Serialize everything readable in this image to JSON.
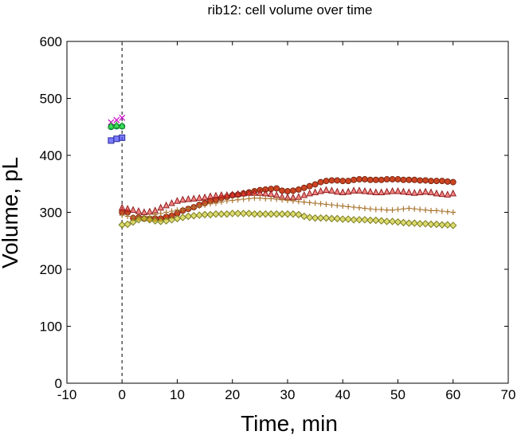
{
  "chart_data": {
    "type": "scatter",
    "title": "rib12: cell volume over time",
    "xlabel": "Time, min",
    "ylabel": "Volume, pL",
    "xlim": [
      -10,
      70
    ],
    "ylim": [
      0,
      600
    ],
    "xticks": [
      -10,
      0,
      10,
      20,
      30,
      40,
      50,
      60,
      70
    ],
    "yticks": [
      0,
      100,
      200,
      300,
      400,
      500,
      600
    ],
    "grid": false,
    "reference_line": {
      "x": 0,
      "style": "dashed",
      "color": "#555555"
    },
    "series": [
      {
        "marker": "x",
        "color": "#cc00cc",
        "x": [
          -2,
          -1,
          0
        ],
        "y": [
          458,
          462,
          466
        ]
      },
      {
        "marker": "circle",
        "color": "#00cc66",
        "x": [
          -2,
          -1,
          0
        ],
        "y": [
          450,
          451,
          451
        ]
      },
      {
        "marker": "triangle",
        "color": "#55ff55",
        "x": [
          -2,
          -1,
          0
        ],
        "y": [
          452,
          453,
          452
        ]
      },
      {
        "marker": "square",
        "color": "#4444ff",
        "x": [
          -2,
          -1,
          0
        ],
        "y": [
          426,
          429,
          431
        ]
      },
      {
        "marker": "circle",
        "color": "#cc4422",
        "x": [
          0,
          1,
          2,
          3,
          4,
          5,
          6,
          7,
          8,
          9,
          10,
          11,
          12,
          13,
          14,
          15,
          16,
          17,
          18,
          19,
          20,
          21,
          22,
          23,
          24,
          25,
          26,
          27,
          28,
          29,
          30,
          31,
          32,
          33,
          34,
          35,
          36,
          37,
          38,
          39,
          40,
          41,
          42,
          43,
          44,
          45,
          46,
          47,
          48,
          49,
          50,
          51,
          52,
          53,
          54,
          55,
          56,
          57,
          58,
          59,
          60
        ],
        "y": [
          300,
          300,
          290,
          291,
          289,
          288,
          289,
          289,
          292,
          294,
          298,
          303,
          306,
          309,
          313,
          316,
          320,
          322,
          325,
          327,
          330,
          331,
          333,
          335,
          337,
          339,
          340,
          341,
          342,
          338,
          337,
          338,
          340,
          343,
          346,
          349,
          353,
          355,
          356,
          356,
          355,
          355,
          357,
          358,
          358,
          357,
          357,
          357,
          358,
          358,
          358,
          357,
          357,
          357,
          356,
          356,
          355,
          355,
          355,
          354,
          353
        ]
      },
      {
        "marker": "triangle",
        "color": "#ee3333",
        "x": [
          0,
          1,
          2,
          3,
          4,
          5,
          6,
          7,
          8,
          9,
          10,
          11,
          12,
          13,
          14,
          15,
          16,
          17,
          18,
          19,
          20,
          21,
          22,
          23,
          24,
          25,
          26,
          27,
          28,
          29,
          30,
          31,
          32,
          33,
          34,
          35,
          36,
          37,
          38,
          39,
          40,
          41,
          42,
          43,
          44,
          45,
          46,
          47,
          48,
          49,
          50,
          51,
          52,
          53,
          54,
          55,
          56,
          57,
          58,
          59,
          60
        ],
        "y": [
          308,
          306,
          304,
          302,
          300,
          301,
          303,
          308,
          312,
          316,
          320,
          322,
          323,
          324,
          325,
          326,
          328,
          329,
          330,
          330,
          331,
          332,
          333,
          334,
          334,
          334,
          333,
          332,
          330,
          327,
          326,
          326,
          327,
          330,
          333,
          335,
          337,
          339,
          338,
          336,
          335,
          336,
          338,
          338,
          337,
          336,
          335,
          335,
          336,
          337,
          337,
          336,
          335,
          334,
          335,
          336,
          335,
          333,
          332,
          331,
          333
        ]
      },
      {
        "marker": "plus",
        "color": "#aa7733",
        "x": [
          0,
          1,
          2,
          3,
          4,
          5,
          6,
          7,
          8,
          9,
          10,
          11,
          12,
          13,
          14,
          15,
          16,
          17,
          18,
          19,
          20,
          21,
          22,
          23,
          24,
          25,
          26,
          27,
          28,
          29,
          30,
          31,
          32,
          33,
          34,
          35,
          36,
          37,
          38,
          39,
          40,
          41,
          42,
          43,
          44,
          45,
          46,
          47,
          48,
          49,
          50,
          51,
          52,
          53,
          54,
          55,
          56,
          57,
          58,
          59,
          60
        ],
        "y": [
          295,
          293,
          292,
          291,
          290,
          293,
          296,
          298,
          300,
          302,
          304,
          305,
          307,
          309,
          311,
          313,
          315,
          316,
          318,
          320,
          321,
          322,
          323,
          324,
          325,
          325,
          324,
          324,
          323,
          322,
          321,
          320,
          319,
          318,
          317,
          316,
          315,
          314,
          313,
          312,
          311,
          310,
          309,
          308,
          307,
          306,
          305,
          305,
          304,
          304,
          305,
          306,
          307,
          306,
          305,
          304,
          303,
          303,
          302,
          301,
          300
        ]
      },
      {
        "marker": "diamond",
        "color": "#cccc33",
        "x": [
          0,
          1,
          2,
          3,
          4,
          5,
          6,
          7,
          8,
          9,
          10,
          11,
          12,
          13,
          14,
          15,
          16,
          17,
          18,
          19,
          20,
          21,
          22,
          23,
          24,
          25,
          26,
          27,
          28,
          29,
          30,
          31,
          32,
          33,
          34,
          35,
          36,
          37,
          38,
          39,
          40,
          41,
          42,
          43,
          44,
          45,
          46,
          47,
          48,
          49,
          50,
          51,
          52,
          53,
          54,
          55,
          56,
          57,
          58,
          59,
          60
        ],
        "y": [
          278,
          279,
          283,
          287,
          289,
          287,
          285,
          284,
          285,
          287,
          289,
          291,
          293,
          294,
          295,
          296,
          296,
          297,
          297,
          297,
          298,
          298,
          298,
          298,
          297,
          297,
          297,
          297,
          297,
          297,
          297,
          297,
          296,
          293,
          291,
          290,
          290,
          290,
          289,
          289,
          288,
          288,
          287,
          287,
          287,
          286,
          286,
          285,
          284,
          284,
          283,
          282,
          281,
          281,
          280,
          280,
          279,
          279,
          278,
          278,
          277
        ]
      }
    ]
  }
}
